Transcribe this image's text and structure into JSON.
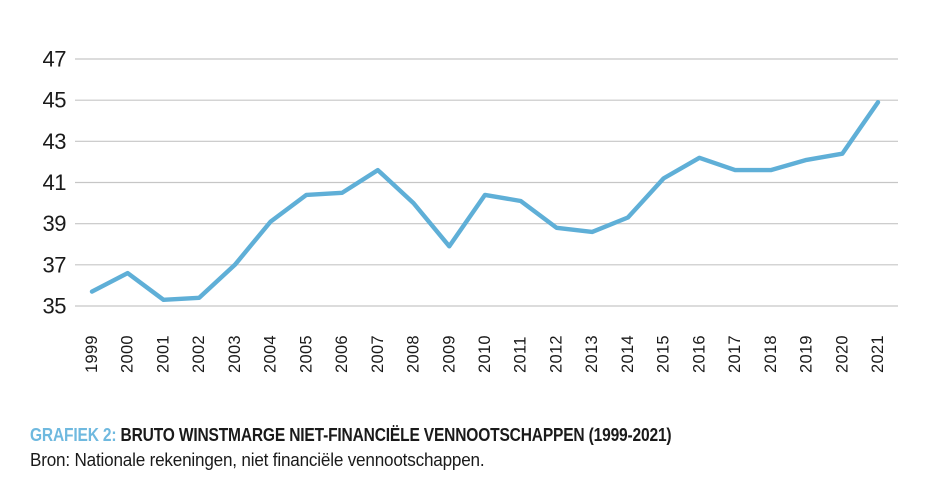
{
  "caption": {
    "label": "GRAFIEK 2:",
    "title": "BRUTO WINSTMARGE NIET-FINANCIËLE VENNOOTSCHAPPEN (1999-2021)",
    "source": "Bron: Nationale rekeningen, niet financiële vennootschappen."
  },
  "colors": {
    "line": "#5fafd7",
    "gridline": "#c6c6c6",
    "axis_text": "#1a1a1a",
    "caption_accent": "#6fb9df"
  },
  "chart_data": {
    "type": "line",
    "title": "GRAFIEK 2: BRUTO WINSTMARGE NIET-FINANCIËLE VENNOOTSCHAPPEN (1999-2021)",
    "source": "Bron: Nationale rekeningen, niet financiële vennootschappen.",
    "series_name": "Bruto winstmarge",
    "x": [
      1999,
      2000,
      2001,
      2002,
      2003,
      2004,
      2005,
      2006,
      2007,
      2008,
      2009,
      2010,
      2011,
      2012,
      2013,
      2014,
      2015,
      2016,
      2017,
      2018,
      2019,
      2020,
      2021
    ],
    "values": [
      35.7,
      36.6,
      35.3,
      35.4,
      37.0,
      39.1,
      40.4,
      40.5,
      41.6,
      40.0,
      37.9,
      40.4,
      40.1,
      38.8,
      38.6,
      39.3,
      41.2,
      42.2,
      41.6,
      41.6,
      42.1,
      42.4,
      44.9
    ],
    "xlabel": "",
    "ylabel": "",
    "ylim": [
      35,
      47
    ],
    "yticks": [
      35,
      37,
      39,
      41,
      43,
      45,
      47
    ],
    "grid": true,
    "legend_position": "none"
  }
}
